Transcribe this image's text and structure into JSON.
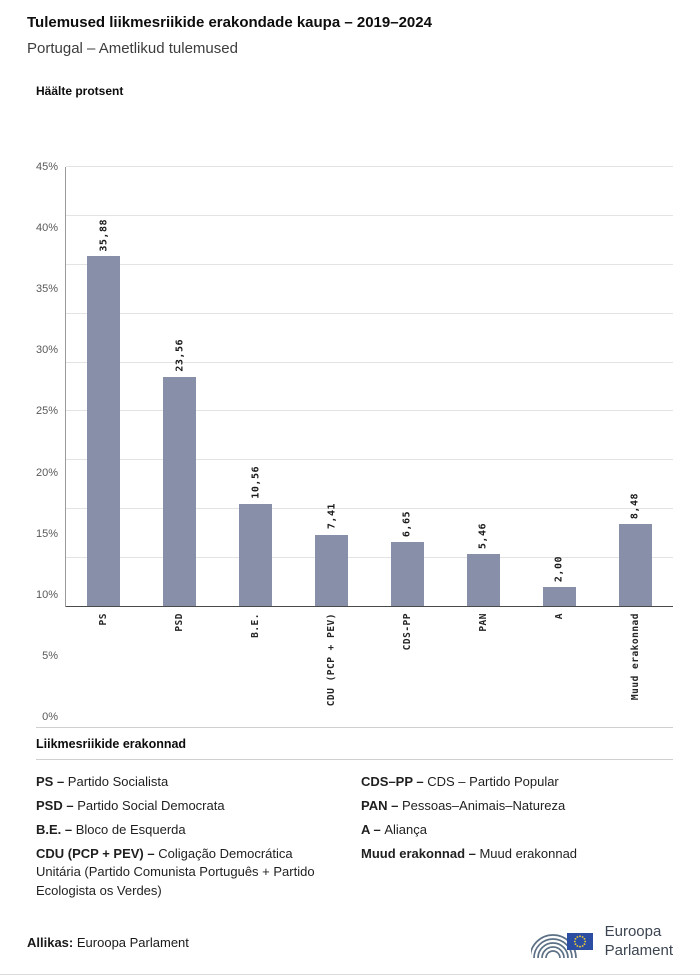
{
  "header": {
    "title": "Tulemused liikmesriikide erakondade kaupa – 2019–2024",
    "subtitle": "Portugal – Ametlikud tulemused"
  },
  "chart_data": {
    "type": "bar",
    "axis_title": "Häälte protsent",
    "ylabel": "Häälte protsent",
    "categories": [
      "PS",
      "PSD",
      "B.E.",
      "CDU (PCP + PEV)",
      "CDS-PP",
      "PAN",
      "A",
      "Muud erakonnad"
    ],
    "values": [
      35.88,
      23.56,
      10.56,
      7.41,
      6.65,
      5.46,
      2.0,
      8.48
    ],
    "value_labels": [
      "35,88",
      "23,56",
      "10,56",
      "7,41",
      "6,65",
      "5,46",
      "2,00",
      "8,48"
    ],
    "ylim": [
      0,
      45
    ],
    "ytick_step": 5,
    "ytick_suffix": "%",
    "grid": true,
    "legend_position": "none",
    "bar_color": "#878fa9"
  },
  "legend": {
    "title": "Liikmesriikide erakonnad",
    "columns": [
      [
        {
          "abbr": "PS –",
          "name": "Partido Socialista"
        },
        {
          "abbr": "PSD –",
          "name": "Partido Social Democrata"
        },
        {
          "abbr": "B.E. –",
          "name": "Bloco de Esquerda"
        },
        {
          "abbr": "CDU (PCP + PEV) –",
          "name": "Coligação Democrática Unitária (Partido Comunista Português + Partido Ecologista os Verdes)"
        }
      ],
      [
        {
          "abbr": "CDS–PP –",
          "name": "CDS – Partido Popular"
        },
        {
          "abbr": "PAN –",
          "name": "Pessoas–Animais–Natureza"
        },
        {
          "abbr": "A –",
          "name": "Aliança"
        },
        {
          "abbr": "Muud erakonnad –",
          "name": "Muud erakonnad"
        }
      ]
    ]
  },
  "footer": {
    "source_label": "Allikas:",
    "source_text": "Euroopa Parlament",
    "logo_line1": "Euroopa",
    "logo_line2": "Parlament"
  }
}
